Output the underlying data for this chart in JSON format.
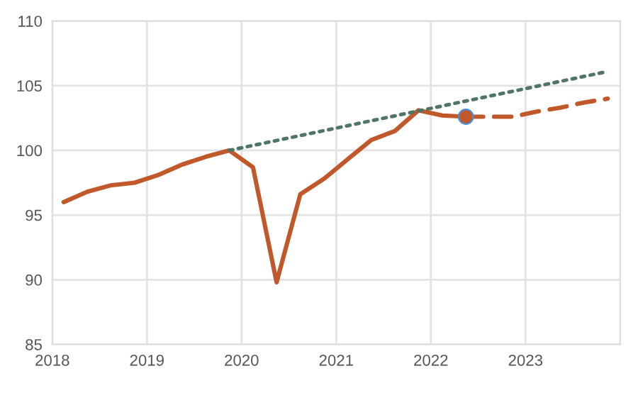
{
  "chart_data": {
    "type": "line",
    "xlim": [
      2018,
      2024
    ],
    "ylim": [
      85,
      110
    ],
    "xticks": [
      {
        "value": 2018,
        "label": "2018"
      },
      {
        "value": 2019,
        "label": "2019"
      },
      {
        "value": 2020,
        "label": "2020"
      },
      {
        "value": 2021,
        "label": "2021"
      },
      {
        "value": 2022,
        "label": "2022"
      },
      {
        "value": 2023,
        "label": "2023"
      }
    ],
    "yticks": [
      85,
      90,
      95,
      100,
      105,
      110
    ],
    "grid": true,
    "series": [
      {
        "color": "#c0582a",
        "line_style": "solid",
        "x": [
          2018.12,
          2018.37,
          2018.62,
          2018.87,
          2019.12,
          2019.37,
          2019.62,
          2019.87,
          2020.12,
          2020.37,
          2020.62,
          2020.87,
          2021.12,
          2021.37,
          2021.62,
          2021.87,
          2022.12,
          2022.37
        ],
        "values": [
          96.0,
          96.8,
          97.3,
          97.5,
          98.1,
          98.9,
          99.5,
          100.0,
          98.7,
          89.8,
          96.6,
          97.8,
          99.3,
          100.8,
          101.5,
          103.1,
          102.7,
          102.6
        ]
      },
      {
        "color": "#c0582a",
        "line_style": "dashed",
        "x": [
          2022.37,
          2022.62,
          2022.87,
          2023.12,
          2023.37,
          2023.62,
          2023.87
        ],
        "values": [
          102.6,
          102.6,
          102.6,
          103.0,
          103.3,
          103.7,
          104.0
        ]
      },
      {
        "color": "#4f7566",
        "line_style": "dotted",
        "x": [
          2019.87,
          2023.87
        ],
        "values": [
          100.0,
          106.1
        ]
      },
      {
        "type": "scatter",
        "color": "#c0582a",
        "marker": "circle",
        "x": [
          2022.37
        ],
        "values": [
          102.6
        ]
      }
    ]
  }
}
